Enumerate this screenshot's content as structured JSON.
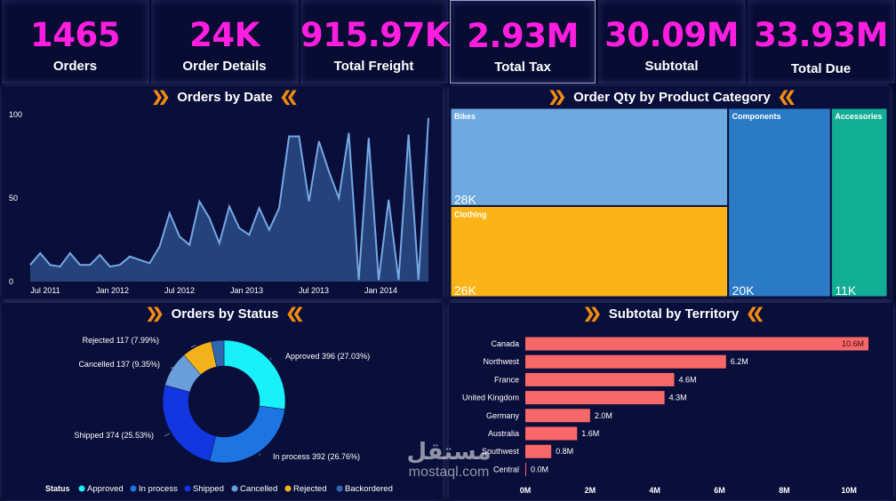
{
  "kpis": [
    {
      "value": "1465",
      "label": "Orders"
    },
    {
      "value": "24K",
      "label": "Order Details"
    },
    {
      "value": "915.97K",
      "label": "Total Freight"
    },
    {
      "value": "2.93M",
      "label": "Total Tax"
    },
    {
      "value": "30.09M",
      "label": "Subtotal"
    },
    {
      "value": "33.93M",
      "label": "Total Due"
    }
  ],
  "panels": {
    "orders_by_date": "Orders by Date",
    "qty_by_category": "Order Qty by Product Category",
    "orders_by_status": "Orders by Status",
    "subtotal_by_territory": "Subtotal by Territory"
  },
  "decor": {
    "chevrons_left": "❯❯",
    "chevrons_right": "❮❮"
  },
  "watermark": {
    "brand": "مستقل",
    "site": "mostaql.com"
  },
  "chart_data": [
    {
      "type": "area",
      "title": "Orders by Date",
      "x_ticks": [
        "Jul 2011",
        "Jan 2012",
        "Jul 2012",
        "Jan 2013",
        "Jul 2013",
        "Jan 2014"
      ],
      "y_ticks": [
        "0",
        "50",
        "100"
      ],
      "ylim": [
        0,
        100
      ],
      "series": [
        {
          "values": [
            10,
            17,
            10,
            9,
            17,
            10,
            10,
            16,
            9,
            10,
            15,
            13,
            11,
            21,
            41,
            27,
            22,
            48,
            38,
            23,
            45,
            32,
            28,
            44,
            31,
            44,
            87,
            87,
            48,
            84,
            66,
            50,
            89,
            1,
            86,
            1,
            49,
            1,
            88,
            1,
            98
          ]
        }
      ],
      "color": "#5b8fd1"
    },
    {
      "type": "treemap",
      "title": "Order Qty by Product Category",
      "categories": [
        "Bikes",
        "Clothing",
        "Components",
        "Accessories"
      ],
      "values": [
        28000,
        26000,
        20000,
        11000
      ],
      "value_labels": [
        "28K",
        "26K",
        "20K",
        "11K"
      ],
      "colors": [
        "#6ea9df",
        "#fbb418",
        "#2a7ac6",
        "#12ad95"
      ]
    },
    {
      "type": "pie",
      "title": "Orders by Status",
      "categories": [
        "Approved",
        "In process",
        "Shipped",
        "Cancelled",
        "Rejected",
        "Backordered"
      ],
      "values": [
        396,
        392,
        374,
        137,
        117,
        49
      ],
      "labels": [
        "Approved 396 (27.03%)",
        "In process 392 (26.76%)",
        "Shipped 374 (25.53%)",
        "Cancelled 137 (9.35%)",
        "Rejected 117 (7.99%)",
        ""
      ],
      "colors": [
        "#18f0fa",
        "#1d74e3",
        "#1236e0",
        "#6a9edb",
        "#f4b21a",
        "#2f68b0"
      ],
      "legend_title": "Status",
      "legend": "bottom"
    },
    {
      "type": "bar",
      "orientation": "horizontal",
      "title": "Subtotal by Territory",
      "categories": [
        "Canada",
        "Northwest",
        "France",
        "United Kingdom",
        "Germany",
        "Australia",
        "Southwest",
        "Central"
      ],
      "values": [
        10.6,
        6.2,
        4.6,
        4.3,
        2.0,
        1.6,
        0.8,
        0.0
      ],
      "value_labels": [
        "10.6M",
        "6.2M",
        "4.6M",
        "4.3M",
        "2.0M",
        "1.6M",
        "0.8M",
        "0.0M"
      ],
      "x_ticks": [
        "0M",
        "2M",
        "4M",
        "6M",
        "8M",
        "10M"
      ],
      "xlim": [
        0,
        10.6
      ],
      "color": "#f96868"
    }
  ]
}
